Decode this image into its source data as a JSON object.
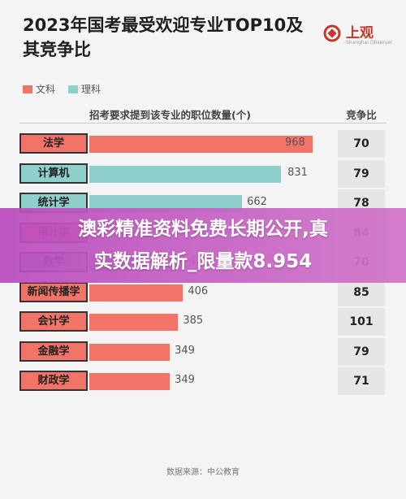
{
  "title": "2023年国考最受欢迎专业TOP10及其竞争比",
  "logo": {
    "name": "上观",
    "sub": "Shanghai Observer"
  },
  "legend": [
    {
      "label": "文科",
      "color": "#f27468"
    },
    {
      "label": "理科",
      "color": "#8ecfcb"
    }
  ],
  "source": "数据来源：中公教育",
  "banner": {
    "line1": "澳彩精准资料免费长期公开,真",
    "line2": "实数据解析_限量款8.954"
  },
  "chart_data": {
    "type": "bar",
    "orientation": "horizontal",
    "title": "2023年国考最受欢迎专业TOP10及其竞争比",
    "ylabel": "招考要求提到该专业的职位数量(个)",
    "extra_column_label": "竞争比",
    "xlim": [
      0,
      1100
    ],
    "categories": [
      "法学",
      "计算机",
      "统计学",
      "审计学",
      "数学",
      "新闻传播学",
      "会计学",
      "金融学",
      "财政学"
    ],
    "values": [
      968,
      831,
      662,
      null,
      412,
      406,
      385,
      349,
      349
    ],
    "field": [
      "文科",
      "理科",
      "理科",
      "文科",
      "理科",
      "文科",
      "文科",
      "文科",
      "文科"
    ],
    "competition_ratio": [
      70,
      79,
      78,
      84,
      70,
      85,
      101,
      79,
      71
    ]
  }
}
